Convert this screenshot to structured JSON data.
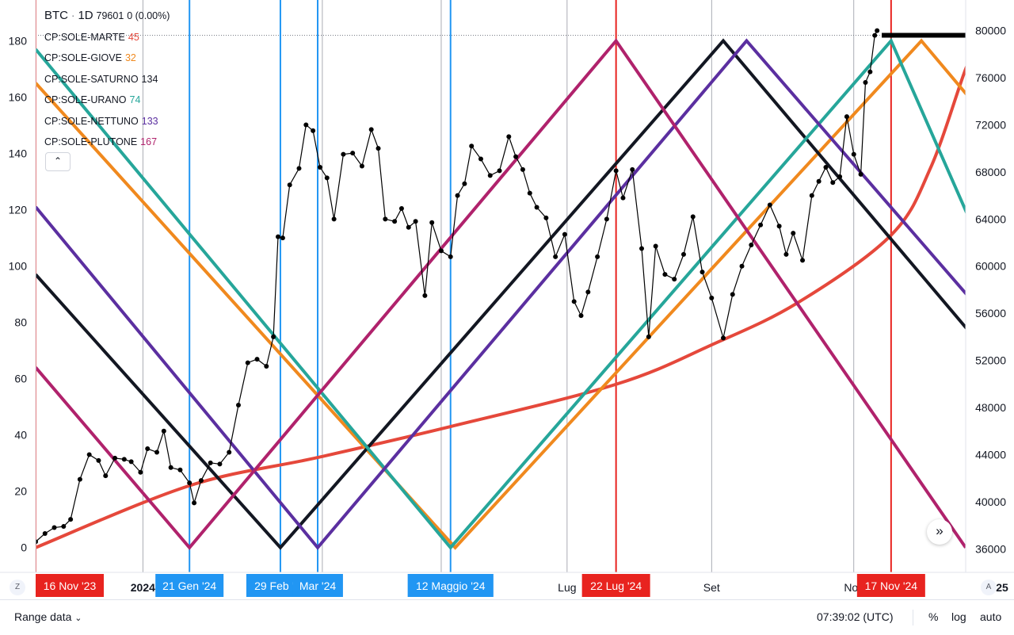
{
  "legend": {
    "symbol": "BTC",
    "dot": "·",
    "interval": "1D",
    "price": "79601",
    "change": "0 (0.00%)",
    "items": [
      {
        "label": "CP:SOLE-MARTE",
        "value": "45",
        "color": "#e5483b"
      },
      {
        "label": "CP:SOLE-GIOVE",
        "value": "32",
        "color": "#f0891e"
      },
      {
        "label": "CP:SOLE-SATURNO",
        "value": "134",
        "color": "#131722"
      },
      {
        "label": "CP:SOLE-URANO",
        "value": "74",
        "color": "#26a69a"
      },
      {
        "label": "CP:SOLE-NETTUNO",
        "value": "133",
        "color": "#5b2fa0"
      },
      {
        "label": "CP:SOLE-PLUTONE",
        "value": "167",
        "color": "#b0226c"
      }
    ],
    "collapse_icon": "chevron-up-icon"
  },
  "bottom_bar": {
    "range_label": "Range data",
    "time": "07:39:02 (UTC)",
    "percent_label": "%",
    "log_label": "log",
    "auto_label": "auto"
  },
  "left_corner_label": "Z",
  "right_corner_label": "A",
  "scroll_icon": "double-chevron-right-icon",
  "chart_data": {
    "type": "line",
    "x_domain": [
      "2023-11-16",
      "2024-12-19"
    ],
    "left_axis": {
      "ticks": [
        0,
        20,
        40,
        60,
        80,
        100,
        120,
        140,
        160,
        180
      ],
      "range": [
        -8.8,
        194.5
      ]
    },
    "right_axis": {
      "ticks": [
        36000,
        40000,
        44000,
        48000,
        52000,
        56000,
        60000,
        64000,
        68000,
        72000,
        76000,
        80000
      ],
      "range": [
        34000,
        82600
      ]
    },
    "x_tick_labels": [
      {
        "date": "2024-01-01",
        "label": "2024"
      },
      {
        "date": "2024-07-01",
        "label": "Lug"
      },
      {
        "date": "2024-09-01",
        "label": "Set"
      },
      {
        "date": "2024-11-01",
        "label": "Nov"
      },
      {
        "date": "2025-01-01",
        "label": "2025"
      }
    ],
    "grid_lines_dates": [
      "2024-01-01",
      "2024-03-18",
      "2024-05-08",
      "2024-07-01",
      "2024-09-01",
      "2024-11-01",
      "2025-01-01"
    ],
    "event_markers": [
      {
        "date": "2023-11-16",
        "label": "16 Nov '23",
        "color": "#e8231f"
      },
      {
        "date": "2024-01-21",
        "label": "21 Gen '24",
        "color": "#2196f3"
      },
      {
        "date": "2024-02-29",
        "label": "29 Feb '24",
        "color": "#2196f3"
      },
      {
        "date": "2024-03-16",
        "label": "Mar '24",
        "color": "#2196f3"
      },
      {
        "date": "2024-05-12",
        "label": "12 Maggio '24",
        "color": "#2196f3"
      },
      {
        "date": "2024-07-22",
        "label": "22 Lug '24",
        "color": "#e8231f"
      },
      {
        "date": "2024-11-17",
        "label": "17 Nov '24",
        "color": "#e8231f"
      }
    ],
    "reference_price": 79601,
    "angle_series": [
      {
        "name": "CP:SOLE-MARTE",
        "color": "#e5483b",
        "shape": "curve",
        "points": [
          [
            "2023-11-16",
            0
          ],
          [
            "2024-01-21",
            22
          ],
          [
            "2024-03-16",
            32
          ],
          [
            "2024-05-12",
            43
          ],
          [
            "2024-07-22",
            58
          ],
          [
            "2024-09-01",
            72
          ],
          [
            "2024-10-08",
            87
          ],
          [
            "2024-11-17",
            111
          ],
          [
            "2024-12-04",
            135
          ],
          [
            "2024-12-19",
            170
          ],
          [
            "2024-12-25",
            180
          ]
        ]
      },
      {
        "name": "CP:SOLE-GIOVE",
        "color": "#f0891e",
        "shape": "zigzag",
        "points": [
          [
            "2023-11-16",
            165
          ],
          [
            "2024-05-14",
            0
          ],
          [
            "2024-11-30",
            180
          ],
          [
            "2025-01-25",
            125
          ]
        ]
      },
      {
        "name": "CP:SOLE-SATURNO",
        "color": "#131722",
        "shape": "zigzag",
        "points": [
          [
            "2023-11-16",
            97
          ],
          [
            "2024-02-29",
            0
          ],
          [
            "2024-09-06",
            180
          ],
          [
            "2025-01-25",
            42
          ]
        ]
      },
      {
        "name": "CP:SOLE-URANO",
        "color": "#26a69a",
        "shape": "zigzag",
        "points": [
          [
            "2023-11-16",
            177
          ],
          [
            "2024-05-12",
            0
          ],
          [
            "2024-11-17",
            180
          ],
          [
            "2025-01-25",
            50
          ]
        ]
      },
      {
        "name": "CP:SOLE-NETTUNO",
        "color": "#5b2fa0",
        "shape": "zigzag",
        "points": [
          [
            "2023-11-16",
            121
          ],
          [
            "2024-03-16",
            0
          ],
          [
            "2024-09-16",
            180
          ],
          [
            "2025-01-25",
            55
          ]
        ]
      },
      {
        "name": "CP:SOLE-PLUTONE",
        "color": "#b0226c",
        "shape": "zigzag",
        "points": [
          [
            "2023-11-16",
            64
          ],
          [
            "2024-01-21",
            0
          ],
          [
            "2024-07-22",
            180
          ],
          [
            "2024-12-19",
            0
          ]
        ]
      }
    ],
    "resistance": {
      "from": "2024-11-13",
      "to": "2024-12-19",
      "price": 79601,
      "color": "#000000"
    },
    "price_series": {
      "name": "BTC",
      "color": "#000000",
      "points": [
        [
          "2023-11-16",
          36600
        ],
        [
          "2023-11-20",
          37300
        ],
        [
          "2023-11-24",
          37800
        ],
        [
          "2023-11-28",
          37900
        ],
        [
          "2023-12-01",
          38500
        ],
        [
          "2023-12-05",
          41900
        ],
        [
          "2023-12-09",
          44000
        ],
        [
          "2023-12-13",
          43500
        ],
        [
          "2023-12-16",
          42200
        ],
        [
          "2023-12-20",
          43700
        ],
        [
          "2023-12-24",
          43600
        ],
        [
          "2023-12-27",
          43400
        ],
        [
          "2023-12-31",
          42500
        ],
        [
          "2024-01-03",
          44500
        ],
        [
          "2024-01-07",
          44200
        ],
        [
          "2024-01-10",
          46000
        ],
        [
          "2024-01-13",
          42900
        ],
        [
          "2024-01-17",
          42700
        ],
        [
          "2024-01-21",
          41600
        ],
        [
          "2024-01-23",
          39900
        ],
        [
          "2024-01-26",
          41800
        ],
        [
          "2024-01-30",
          43300
        ],
        [
          "2024-02-03",
          43200
        ],
        [
          "2024-02-07",
          44200
        ],
        [
          "2024-02-11",
          48200
        ],
        [
          "2024-02-15",
          51800
        ],
        [
          "2024-02-19",
          52100
        ],
        [
          "2024-02-23",
          51500
        ],
        [
          "2024-02-26",
          54000
        ],
        [
          "2024-02-28",
          62500
        ],
        [
          "2024-03-01",
          62400
        ],
        [
          "2024-03-04",
          66900
        ],
        [
          "2024-03-08",
          68300
        ],
        [
          "2024-03-11",
          72000
        ],
        [
          "2024-03-14",
          71500
        ],
        [
          "2024-03-17",
          68400
        ],
        [
          "2024-03-20",
          67500
        ],
        [
          "2024-03-23",
          64000
        ],
        [
          "2024-03-27",
          69500
        ],
        [
          "2024-03-31",
          69600
        ],
        [
          "2024-04-04",
          68500
        ],
        [
          "2024-04-08",
          71600
        ],
        [
          "2024-04-11",
          70000
        ],
        [
          "2024-04-14",
          64000
        ],
        [
          "2024-04-18",
          63800
        ],
        [
          "2024-04-21",
          64900
        ],
        [
          "2024-04-24",
          63300
        ],
        [
          "2024-04-27",
          63800
        ],
        [
          "2024-05-01",
          57500
        ],
        [
          "2024-05-04",
          63700
        ],
        [
          "2024-05-08",
          61300
        ],
        [
          "2024-05-12",
          60800
        ],
        [
          "2024-05-15",
          66000
        ],
        [
          "2024-05-18",
          67000
        ],
        [
          "2024-05-21",
          70200
        ],
        [
          "2024-05-25",
          69100
        ],
        [
          "2024-05-29",
          67700
        ],
        [
          "2024-06-02",
          68100
        ],
        [
          "2024-06-06",
          71000
        ],
        [
          "2024-06-09",
          69300
        ],
        [
          "2024-06-12",
          68200
        ],
        [
          "2024-06-15",
          66200
        ],
        [
          "2024-06-18",
          65000
        ],
        [
          "2024-06-22",
          64100
        ],
        [
          "2024-06-26",
          60800
        ],
        [
          "2024-06-30",
          62700
        ],
        [
          "2024-07-04",
          57000
        ],
        [
          "2024-07-07",
          55800
        ],
        [
          "2024-07-10",
          57800
        ],
        [
          "2024-07-14",
          60800
        ],
        [
          "2024-07-18",
          64000
        ],
        [
          "2024-07-22",
          68100
        ],
        [
          "2024-07-25",
          65800
        ],
        [
          "2024-07-29",
          68200
        ],
        [
          "2024-08-02",
          61500
        ],
        [
          "2024-08-05",
          54000
        ],
        [
          "2024-08-08",
          61700
        ],
        [
          "2024-08-12",
          59300
        ],
        [
          "2024-08-16",
          58900
        ],
        [
          "2024-08-20",
          61000
        ],
        [
          "2024-08-24",
          64200
        ],
        [
          "2024-08-28",
          59500
        ],
        [
          "2024-09-01",
          57300
        ],
        [
          "2024-09-06",
          53900
        ],
        [
          "2024-09-10",
          57600
        ],
        [
          "2024-09-14",
          60000
        ],
        [
          "2024-09-18",
          61800
        ],
        [
          "2024-09-22",
          63500
        ],
        [
          "2024-09-26",
          65200
        ],
        [
          "2024-09-30",
          63400
        ],
        [
          "2024-10-03",
          61000
        ],
        [
          "2024-10-06",
          62800
        ],
        [
          "2024-10-10",
          60500
        ],
        [
          "2024-10-14",
          66000
        ],
        [
          "2024-10-17",
          67200
        ],
        [
          "2024-10-20",
          68400
        ],
        [
          "2024-10-23",
          67100
        ],
        [
          "2024-10-26",
          67600
        ],
        [
          "2024-10-29",
          72700
        ],
        [
          "2024-11-01",
          69500
        ],
        [
          "2024-11-04",
          67800
        ],
        [
          "2024-11-06",
          75600
        ],
        [
          "2024-11-08",
          76500
        ],
        [
          "2024-11-10",
          79600
        ],
        [
          "2024-11-11",
          80000
        ]
      ]
    }
  }
}
